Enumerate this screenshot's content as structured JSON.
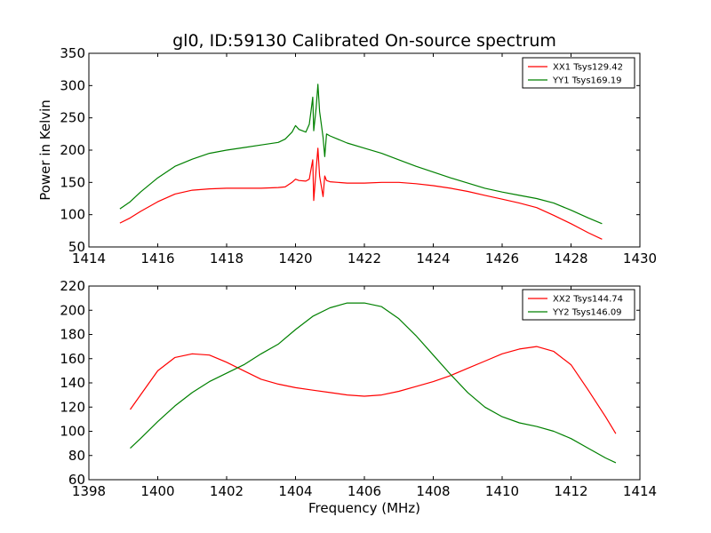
{
  "title": "gl0, ID:59130 Calibrated On-source spectrum",
  "chart_data": [
    {
      "type": "line",
      "title": "gl0, ID:59130 Calibrated On-source spectrum",
      "xlabel": "",
      "ylabel": "Power in Kelvin",
      "xlim": [
        1414,
        1430
      ],
      "ylim": [
        50,
        350
      ],
      "xticks": [
        1414,
        1416,
        1418,
        1420,
        1422,
        1424,
        1426,
        1428,
        1430
      ],
      "yticks": [
        50,
        100,
        150,
        200,
        250,
        300,
        350
      ],
      "grid": false,
      "legend_position": "top-right",
      "series": [
        {
          "name": "XX1 Tsys129.42",
          "color": "#ff0000",
          "points": [
            [
              1414.9,
              87
            ],
            [
              1415.2,
              95
            ],
            [
              1415.5,
              105
            ],
            [
              1416.0,
              120
            ],
            [
              1416.5,
              132
            ],
            [
              1417.0,
              138
            ],
            [
              1417.5,
              140
            ],
            [
              1418.0,
              141
            ],
            [
              1418.5,
              141
            ],
            [
              1419.0,
              141
            ],
            [
              1419.5,
              142
            ],
            [
              1419.7,
              143
            ],
            [
              1419.9,
              150
            ],
            [
              1420.0,
              155
            ],
            [
              1420.1,
              153
            ],
            [
              1420.3,
              152
            ],
            [
              1420.4,
              155
            ],
            [
              1420.45,
              170
            ],
            [
              1420.5,
              185
            ],
            [
              1420.53,
              122
            ],
            [
              1420.6,
              170
            ],
            [
              1420.65,
              203
            ],
            [
              1420.7,
              160
            ],
            [
              1420.8,
              128
            ],
            [
              1420.85,
              160
            ],
            [
              1420.9,
              153
            ],
            [
              1421.0,
              151
            ],
            [
              1421.5,
              149
            ],
            [
              1422.0,
              149
            ],
            [
              1422.5,
              150
            ],
            [
              1423.0,
              150
            ],
            [
              1423.5,
              148
            ],
            [
              1424.0,
              145
            ],
            [
              1424.5,
              141
            ],
            [
              1425.0,
              136
            ],
            [
              1425.5,
              130
            ],
            [
              1426.0,
              124
            ],
            [
              1426.5,
              118
            ],
            [
              1427.0,
              111
            ],
            [
              1427.5,
              99
            ],
            [
              1428.0,
              86
            ],
            [
              1428.5,
              72
            ],
            [
              1428.9,
              62
            ]
          ]
        },
        {
          "name": "YY1 Tsys169.19",
          "color": "#008000",
          "points": [
            [
              1414.9,
              109
            ],
            [
              1415.2,
              120
            ],
            [
              1415.5,
              135
            ],
            [
              1416.0,
              157
            ],
            [
              1416.5,
              175
            ],
            [
              1417.0,
              186
            ],
            [
              1417.5,
              195
            ],
            [
              1418.0,
              200
            ],
            [
              1418.5,
              204
            ],
            [
              1419.0,
              208
            ],
            [
              1419.5,
              212
            ],
            [
              1419.7,
              217
            ],
            [
              1419.9,
              228
            ],
            [
              1420.0,
              238
            ],
            [
              1420.1,
              232
            ],
            [
              1420.3,
              228
            ],
            [
              1420.4,
              240
            ],
            [
              1420.45,
              260
            ],
            [
              1420.5,
              282
            ],
            [
              1420.53,
              230
            ],
            [
              1420.6,
              265
            ],
            [
              1420.65,
              302
            ],
            [
              1420.7,
              260
            ],
            [
              1420.8,
              220
            ],
            [
              1420.85,
              190
            ],
            [
              1420.9,
              225
            ],
            [
              1421.0,
              222
            ],
            [
              1421.5,
              211
            ],
            [
              1422.0,
              203
            ],
            [
              1422.5,
              195
            ],
            [
              1423.0,
              185
            ],
            [
              1423.5,
              175
            ],
            [
              1424.0,
              166
            ],
            [
              1424.5,
              157
            ],
            [
              1425.0,
              149
            ],
            [
              1425.5,
              141
            ],
            [
              1426.0,
              135
            ],
            [
              1426.5,
              130
            ],
            [
              1427.0,
              125
            ],
            [
              1427.5,
              118
            ],
            [
              1428.0,
              107
            ],
            [
              1428.5,
              95
            ],
            [
              1428.9,
              86
            ]
          ]
        }
      ]
    },
    {
      "type": "line",
      "title": "",
      "xlabel": "Frequency (MHz)",
      "ylabel": "",
      "xlim": [
        1398,
        1414
      ],
      "ylim": [
        60,
        220
      ],
      "xticks": [
        1398,
        1400,
        1402,
        1404,
        1406,
        1408,
        1410,
        1412,
        1414
      ],
      "yticks": [
        60,
        80,
        100,
        120,
        140,
        160,
        180,
        200,
        220
      ],
      "grid": false,
      "legend_position": "top-right",
      "series": [
        {
          "name": "XX2 Tsys144.74",
          "color": "#ff0000",
          "points": [
            [
              1399.2,
              118
            ],
            [
              1399.5,
              130
            ],
            [
              1400.0,
              150
            ],
            [
              1400.5,
              161
            ],
            [
              1401.0,
              164
            ],
            [
              1401.5,
              163
            ],
            [
              1402.0,
              157
            ],
            [
              1402.5,
              150
            ],
            [
              1403.0,
              143
            ],
            [
              1403.5,
              139
            ],
            [
              1404.0,
              136
            ],
            [
              1404.5,
              134
            ],
            [
              1405.0,
              132
            ],
            [
              1405.5,
              130
            ],
            [
              1406.0,
              129
            ],
            [
              1406.5,
              130
            ],
            [
              1407.0,
              133
            ],
            [
              1407.5,
              137
            ],
            [
              1408.0,
              141
            ],
            [
              1408.5,
              146
            ],
            [
              1409.0,
              152
            ],
            [
              1409.5,
              158
            ],
            [
              1410.0,
              164
            ],
            [
              1410.5,
              168
            ],
            [
              1411.0,
              170
            ],
            [
              1411.5,
              166
            ],
            [
              1412.0,
              155
            ],
            [
              1412.5,
              134
            ],
            [
              1413.0,
              112
            ],
            [
              1413.3,
              98
            ]
          ]
        },
        {
          "name": "YY2 Tsys146.09",
          "color": "#008000",
          "points": [
            [
              1399.2,
              86
            ],
            [
              1399.5,
              94
            ],
            [
              1400.0,
              108
            ],
            [
              1400.5,
              121
            ],
            [
              1401.0,
              132
            ],
            [
              1401.5,
              141
            ],
            [
              1402.0,
              148
            ],
            [
              1402.5,
              155
            ],
            [
              1403.0,
              164
            ],
            [
              1403.5,
              172
            ],
            [
              1404.0,
              184
            ],
            [
              1404.5,
              195
            ],
            [
              1405.0,
              202
            ],
            [
              1405.5,
              206
            ],
            [
              1406.0,
              206
            ],
            [
              1406.5,
              203
            ],
            [
              1407.0,
              193
            ],
            [
              1407.5,
              179
            ],
            [
              1408.0,
              163
            ],
            [
              1408.5,
              147
            ],
            [
              1409.0,
              132
            ],
            [
              1409.5,
              120
            ],
            [
              1410.0,
              112
            ],
            [
              1410.5,
              107
            ],
            [
              1411.0,
              104
            ],
            [
              1411.5,
              100
            ],
            [
              1412.0,
              94
            ],
            [
              1412.5,
              86
            ],
            [
              1413.0,
              78
            ],
            [
              1413.3,
              74
            ]
          ]
        }
      ]
    }
  ]
}
